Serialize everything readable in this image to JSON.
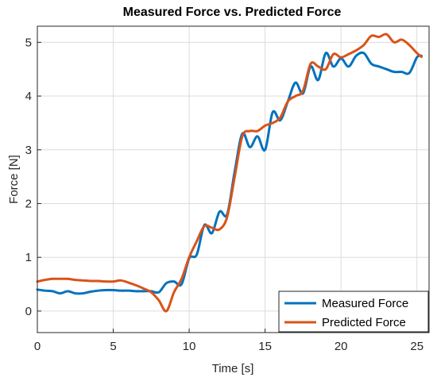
{
  "chart_data": {
    "type": "line",
    "title": "Measured Force vs. Predicted Force",
    "xlabel": "Time [s]",
    "ylabel": "Force [N]",
    "xlim": [
      0,
      25.8
    ],
    "ylim": [
      -0.4,
      5.3
    ],
    "xticks": [
      0,
      5,
      10,
      15,
      20,
      25
    ],
    "yticks": [
      0,
      1,
      2,
      3,
      4,
      5
    ],
    "grid": true,
    "legend_position": "bottom-right",
    "series": [
      {
        "name": "Measured Force",
        "color": "#0072BD",
        "x": [
          0,
          0.5,
          1,
          1.5,
          2,
          2.5,
          3,
          3.5,
          4,
          4.5,
          5,
          5.5,
          6,
          6.5,
          7,
          7.5,
          8,
          8.5,
          9,
          9.5,
          10,
          10.5,
          11,
          11.5,
          12,
          12.5,
          13,
          13.5,
          14,
          14.5,
          15,
          15.5,
          16,
          16.5,
          17,
          17.5,
          18,
          18.5,
          19,
          19.5,
          20,
          20.5,
          21,
          21.5,
          22,
          22.5,
          23,
          23.5,
          24,
          24.5,
          25,
          25.3
        ],
        "y": [
          0.4,
          0.38,
          0.37,
          0.33,
          0.37,
          0.33,
          0.33,
          0.36,
          0.38,
          0.39,
          0.39,
          0.38,
          0.38,
          0.37,
          0.37,
          0.37,
          0.35,
          0.52,
          0.55,
          0.5,
          0.98,
          1.05,
          1.6,
          1.45,
          1.85,
          1.8,
          2.6,
          3.3,
          3.05,
          3.25,
          3.0,
          3.7,
          3.55,
          3.9,
          4.25,
          4.05,
          4.55,
          4.3,
          4.8,
          4.55,
          4.7,
          4.55,
          4.75,
          4.8,
          4.6,
          4.55,
          4.5,
          4.45,
          4.45,
          4.43,
          4.72,
          4.75
        ]
      },
      {
        "name": "Predicted Force",
        "color": "#D95319",
        "x": [
          0,
          0.5,
          1,
          1.5,
          2,
          2.5,
          3,
          3.5,
          4,
          4.5,
          5,
          5.5,
          6,
          6.5,
          7,
          7.5,
          8,
          8.5,
          9,
          9.5,
          10,
          10.5,
          11,
          11.5,
          12,
          12.5,
          13,
          13.5,
          14,
          14.5,
          15,
          15.5,
          16,
          16.5,
          17,
          17.5,
          18,
          18.5,
          19,
          19.5,
          20,
          20.5,
          21,
          21.5,
          22,
          22.5,
          23,
          23.5,
          24,
          24.5,
          25,
          25.3
        ],
        "y": [
          0.55,
          0.58,
          0.6,
          0.6,
          0.6,
          0.58,
          0.57,
          0.56,
          0.56,
          0.55,
          0.55,
          0.57,
          0.53,
          0.48,
          0.42,
          0.35,
          0.2,
          0.0,
          0.35,
          0.6,
          1.0,
          1.3,
          1.58,
          1.55,
          1.52,
          1.75,
          2.5,
          3.25,
          3.35,
          3.35,
          3.45,
          3.5,
          3.6,
          3.9,
          4.0,
          4.1,
          4.6,
          4.55,
          4.5,
          4.78,
          4.72,
          4.78,
          4.85,
          4.95,
          5.12,
          5.1,
          5.15,
          5.0,
          5.05,
          4.95,
          4.8,
          4.73
        ]
      }
    ]
  }
}
